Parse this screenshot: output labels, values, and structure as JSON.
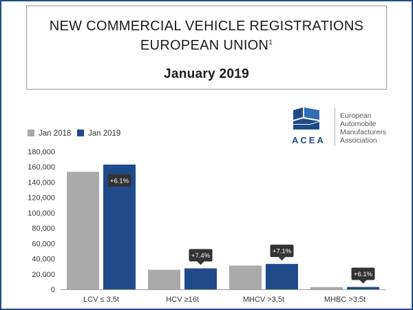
{
  "header": {
    "title_line1": "NEW COMMERCIAL VEHICLE REGISTRATIONS",
    "title_line2": "EUROPEAN UNION",
    "title_sup": "1",
    "subtitle": "January 2019"
  },
  "logo": {
    "acronym": "ACEA",
    "name_lines": [
      "European",
      "Automobile",
      "Manufacturers",
      "Association"
    ]
  },
  "colors": {
    "jan2018": "#aaaaaa",
    "jan2019": "#1f4b8a",
    "callout": "#333333"
  },
  "chart_data": {
    "type": "bar",
    "categories": [
      "LCV ≤ 3,5t",
      "HCV ≥16t",
      "MHCV >3,5t",
      "MHBC >3,5t"
    ],
    "series": [
      {
        "name": "Jan 2018",
        "values": [
          153500,
          25500,
          31000,
          2900
        ]
      },
      {
        "name": "Jan 2019",
        "values": [
          163000,
          27400,
          33200,
          3100
        ]
      }
    ],
    "annotations": [
      "+6.1%",
      "+7.4%",
      "+7.1%",
      "+6.1%"
    ],
    "y_ticks": [
      "0",
      "20,000",
      "40,000",
      "60,000",
      "80,000",
      "100,000",
      "120,000",
      "140,000",
      "160,000",
      "180,000"
    ],
    "ylim": [
      0,
      180000
    ],
    "legend_position": "top-left",
    "grid": false
  }
}
